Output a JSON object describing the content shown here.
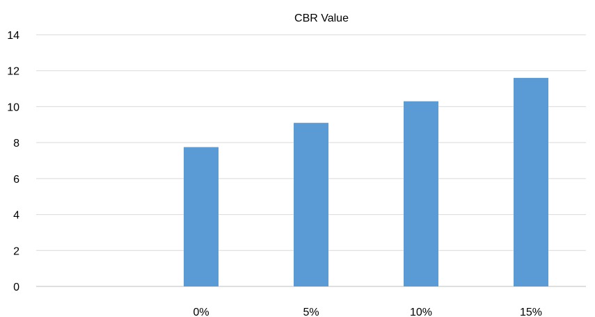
{
  "chart_data": {
    "type": "bar",
    "title": "CBR Value",
    "categories": [
      "",
      "0%",
      "5%",
      "10%",
      "15%"
    ],
    "series": [
      {
        "values": [
          null,
          7.75,
          9.1,
          10.3,
          11.6
        ]
      }
    ],
    "xlabel": "",
    "ylabel": "",
    "ylim": [
      0,
      14
    ],
    "yticks": [
      0,
      2,
      4,
      6,
      8,
      10,
      12,
      14
    ],
    "grid": true,
    "legend": "none",
    "colors": {
      "bar": "#5b9bd5",
      "grid": "#d9d9d9"
    }
  }
}
